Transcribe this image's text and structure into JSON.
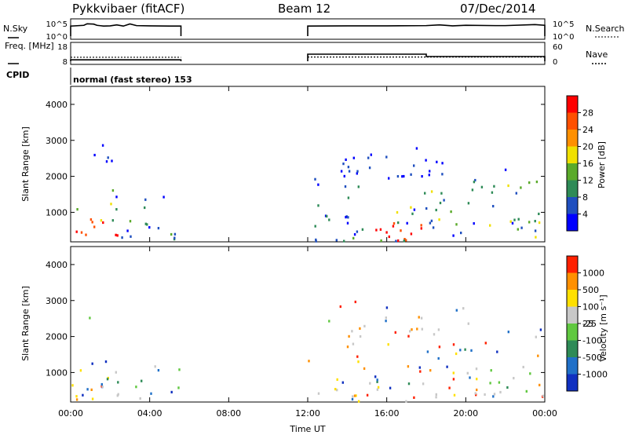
{
  "header": {
    "radar": "Pykkvibaer (fitACF)",
    "beam": "Beam 12",
    "date": "07/Dec/2014"
  },
  "chart_data": [
    {
      "type": "line",
      "ylabel": "N.Sky",
      "right_label": "N.Search",
      "yticks_left": [
        "10^5",
        "10^0"
      ],
      "yticks_right": [
        "10^5",
        "10^0"
      ],
      "x": [
        "00:00",
        "00:40",
        "00:50",
        "01:10",
        "01:20",
        "01:40",
        "02:00",
        "02:20",
        "02:40",
        "03:00",
        "03:20",
        "04:00",
        "05:00",
        "05:35",
        "12:00",
        "14:00",
        "16:00",
        "18:00",
        "18:40",
        "19:20",
        "20:00",
        "21:30",
        "22:00",
        "23:30",
        "24:00"
      ],
      "values": [
        10000,
        20000,
        80000,
        60000,
        20000,
        10000,
        12000,
        30000,
        10000,
        70000,
        15000,
        12000,
        10000,
        10000,
        10000,
        12000,
        12000,
        15000,
        30000,
        12000,
        20000,
        15000,
        15000,
        40000,
        20000
      ],
      "gaps": [
        [
          "05:35",
          "12:00"
        ]
      ]
    },
    {
      "type": "line",
      "ylabel": "Freq. [MHz]",
      "right_label": "Nave",
      "yticks_left": [
        "18",
        "8"
      ],
      "yticks_right": [
        "60",
        "0"
      ],
      "freq_mhz": [
        {
          "x": "00:00",
          "y": 10.8
        },
        {
          "x": "05:35",
          "y": 10.8
        },
        {
          "x": "12:00",
          "y": 11.0
        },
        {
          "x": "24:00",
          "y": 11.0
        }
      ],
      "nave": [
        {
          "x": "00:00",
          "y": 6
        },
        {
          "x": "05:35",
          "y": 6
        },
        {
          "x": "12:00",
          "y": 30
        },
        {
          "x": "18:00",
          "y": 30
        },
        {
          "x": "18:00",
          "y": 20
        },
        {
          "x": "24:00",
          "y": 20
        }
      ],
      "gaps": [
        [
          "05:35",
          "12:00"
        ]
      ]
    },
    {
      "type": "table",
      "label": "CPID",
      "value": "normal (fast stereo) 153"
    },
    {
      "type": "heatmap",
      "variable": "Power",
      "ylabel": "Slant Range [km]",
      "yticks": [
        "1000",
        "2000",
        "3000",
        "4000"
      ],
      "colorbar_label": "Power [dB]",
      "colorbar_ticks": [
        "4",
        "8",
        "12",
        "16",
        "20",
        "24",
        "28"
      ],
      "colors": [
        "#0000ff",
        "#1f4fbf",
        "#2e8b57",
        "#5aaa2a",
        "#f0e000",
        "#ff9000",
        "#ff5000",
        "#ff0000"
      ],
      "x_range": [
        "00:00",
        "24:00"
      ],
      "y_range_km": [
        180,
        4500
      ],
      "data_gap": [
        "05:35",
        "12:00"
      ]
    },
    {
      "type": "heatmap",
      "variable": "Velocity",
      "ylabel": "Slant Range [km]",
      "yticks": [
        "1000",
        "2000",
        "3000",
        "4000"
      ],
      "colorbar_label": "Velocity [m s^-1]",
      "colorbar_ticks": [
        "1000",
        "500",
        "100",
        "25",
        "-25",
        "-100",
        "-500",
        "-1000"
      ],
      "colors": [
        "#1030c0",
        "#2070c8",
        "#2e8b57",
        "#60c840",
        "#c8c8c8",
        "#ffe000",
        "#ff9000",
        "#ff2000"
      ],
      "x_range": [
        "00:00",
        "24:00"
      ],
      "y_range_km": [
        180,
        4500
      ],
      "data_gap": [
        "05:35",
        "12:00"
      ]
    }
  ],
  "xaxis": {
    "ticks": [
      "00:00",
      "04:00",
      "08:00",
      "12:00",
      "16:00",
      "20:00",
      "00:00"
    ],
    "label": "Time UT"
  }
}
